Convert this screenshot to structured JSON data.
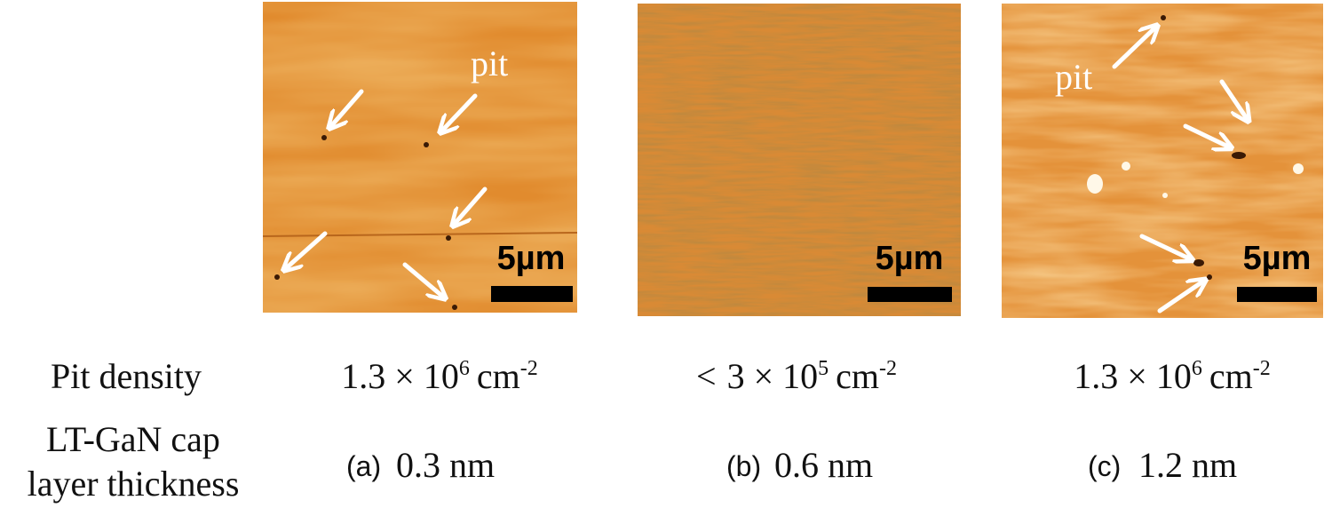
{
  "row_labels": {
    "density": "Pit density",
    "thickness": [
      "LT-GaN cap",
      "layer thickness"
    ]
  },
  "panels": [
    {
      "label": "(a)",
      "thickness": "0.3 nm",
      "scale_bar": "5µm",
      "annotation": "pit",
      "density": {
        "base": "1.3 × 10",
        "exp": "6",
        "unit": "cm",
        "unit_exp": "-2"
      }
    },
    {
      "label": "(b)",
      "thickness": "0.6 nm",
      "scale_bar": "5µm",
      "density": {
        "prefix": "<",
        "base": "3 × 10",
        "exp": "5",
        "unit": "cm",
        "unit_exp": "-2"
      }
    },
    {
      "label": "(c)",
      "thickness": "1.2 nm",
      "scale_bar": "5µm",
      "annotation": "pit",
      "density": {
        "base": "1.3 × 10",
        "exp": "6",
        "unit": "cm",
        "unit_exp": "-2"
      }
    }
  ]
}
